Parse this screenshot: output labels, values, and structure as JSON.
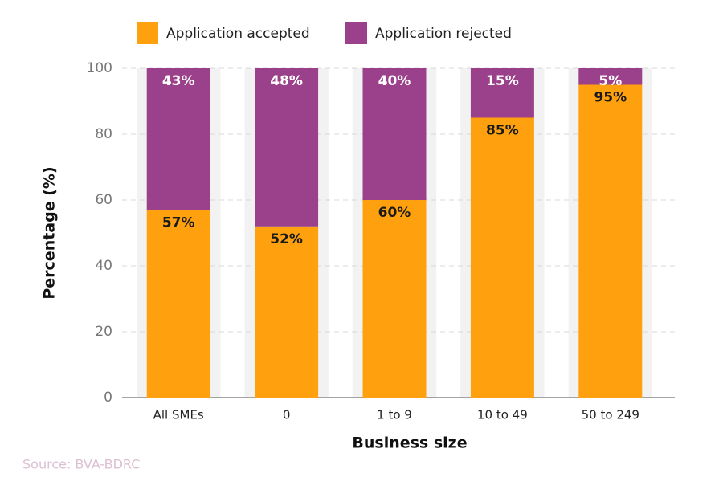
{
  "chart_data": {
    "type": "bar",
    "stacked": true,
    "xlabel": "Business size",
    "ylabel": "Percentage (%)",
    "source": "Source: BVA-BDRC",
    "categories": [
      "All SMEs",
      "0",
      "1 to 9",
      "10 to 49",
      "50 to 249"
    ],
    "series": [
      {
        "name": "Application accepted",
        "color": "#ffa00f",
        "values": [
          57,
          52,
          60,
          85,
          95
        ],
        "value_labels": [
          "57%",
          "52%",
          "60%",
          "85%",
          "95%"
        ]
      },
      {
        "name": "Application rejected",
        "color": "#9b418b",
        "values": [
          43,
          48,
          40,
          15,
          5
        ],
        "value_labels": [
          "43%",
          "48%",
          "40%",
          "15%",
          "5%"
        ]
      }
    ],
    "ylim": [
      0,
      100
    ],
    "yticks": [
      0,
      20,
      40,
      60,
      80,
      100
    ],
    "grid": true,
    "legend": "top"
  }
}
